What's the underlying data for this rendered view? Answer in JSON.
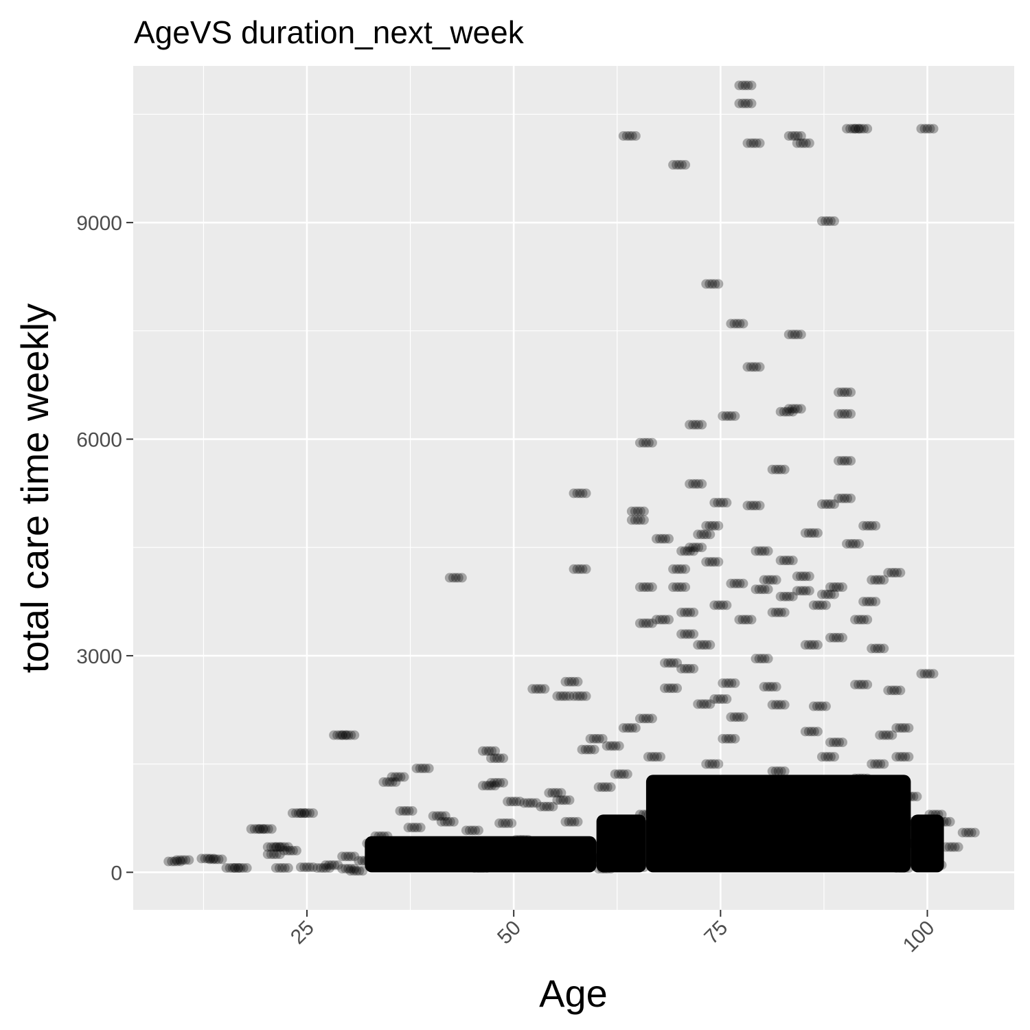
{
  "chart_data": {
    "type": "scatter",
    "title": "AgeVS duration_next_week",
    "xlabel": "Age",
    "ylabel": "total care time weekly",
    "xlim": [
      4,
      110.5
    ],
    "ylim": [
      -520,
      11170
    ],
    "xticks": [
      25,
      50,
      75,
      100
    ],
    "xtick_labels": [
      "25",
      "50",
      "75",
      "100"
    ],
    "yticks": [
      0,
      3000,
      6000,
      9000
    ],
    "ytick_labels": [
      "0",
      "3000",
      "6000",
      "9000"
    ],
    "grid": true,
    "x_tick_rotation_deg": -45,
    "point_color": "#000000",
    "point_alpha": 0.3,
    "points": [
      [
        9,
        150
      ],
      [
        10,
        170
      ],
      [
        13,
        190
      ],
      [
        14,
        180
      ],
      [
        16,
        60
      ],
      [
        17,
        60
      ],
      [
        19,
        600
      ],
      [
        20,
        600
      ],
      [
        21,
        350
      ],
      [
        22,
        350
      ],
      [
        21,
        250
      ],
      [
        22,
        60
      ],
      [
        23,
        300
      ],
      [
        24,
        820
      ],
      [
        25,
        820
      ],
      [
        25,
        70
      ],
      [
        27,
        60
      ],
      [
        28,
        100
      ],
      [
        29,
        1900
      ],
      [
        30,
        1900
      ],
      [
        30,
        220
      ],
      [
        31,
        20
      ],
      [
        32,
        160
      ],
      [
        33,
        400
      ],
      [
        34,
        500
      ],
      [
        35,
        1250
      ],
      [
        36,
        1320
      ],
      [
        37,
        850
      ],
      [
        38,
        620
      ],
      [
        39,
        1440
      ],
      [
        40,
        400
      ],
      [
        41,
        780
      ],
      [
        42,
        700
      ],
      [
        43,
        4080
      ],
      [
        44,
        400
      ],
      [
        45,
        580
      ],
      [
        46,
        300
      ],
      [
        47,
        1200
      ],
      [
        47,
        1680
      ],
      [
        48,
        1240
      ],
      [
        48,
        1580
      ],
      [
        49,
        680
      ],
      [
        50,
        980
      ],
      [
        51,
        450
      ],
      [
        52,
        960
      ],
      [
        53,
        2540
      ],
      [
        54,
        910
      ],
      [
        55,
        1100
      ],
      [
        56,
        1000
      ],
      [
        57,
        2640
      ],
      [
        56,
        2440
      ],
      [
        58,
        2440
      ],
      [
        58,
        5250
      ],
      [
        58,
        4200
      ],
      [
        59,
        1700
      ],
      [
        60,
        1850
      ],
      [
        61,
        1180
      ],
      [
        62,
        1750
      ],
      [
        63,
        1360
      ],
      [
        64,
        2000
      ],
      [
        64,
        10200
      ],
      [
        65,
        5000
      ],
      [
        65,
        4880
      ],
      [
        66,
        5950
      ],
      [
        66,
        3950
      ],
      [
        66,
        3450
      ],
      [
        66,
        2130
      ],
      [
        67,
        1600
      ],
      [
        68,
        4620
      ],
      [
        68,
        3500
      ],
      [
        69,
        2900
      ],
      [
        69,
        2550
      ],
      [
        70,
        9800
      ],
      [
        70,
        4200
      ],
      [
        70,
        3950
      ],
      [
        71,
        4450
      ],
      [
        71,
        3600
      ],
      [
        71,
        3300
      ],
      [
        71,
        2820
      ],
      [
        72,
        6200
      ],
      [
        72,
        5380
      ],
      [
        72,
        4500
      ],
      [
        73,
        4680
      ],
      [
        73,
        3150
      ],
      [
        73,
        2330
      ],
      [
        74,
        8150
      ],
      [
        74,
        4800
      ],
      [
        74,
        4300
      ],
      [
        75,
        5120
      ],
      [
        75,
        3700
      ],
      [
        75,
        2400
      ],
      [
        76,
        6320
      ],
      [
        76,
        2620
      ],
      [
        76,
        1850
      ],
      [
        77,
        7600
      ],
      [
        77,
        4000
      ],
      [
        77,
        2150
      ],
      [
        78,
        10900
      ],
      [
        78,
        10650
      ],
      [
        78,
        3500
      ],
      [
        79,
        10100
      ],
      [
        79,
        7000
      ],
      [
        79,
        5080
      ],
      [
        80,
        4450
      ],
      [
        80,
        3920
      ],
      [
        80,
        2960
      ],
      [
        81,
        4050
      ],
      [
        81,
        2570
      ],
      [
        82,
        5580
      ],
      [
        82,
        3600
      ],
      [
        82,
        2320
      ],
      [
        83,
        6380
      ],
      [
        83,
        4320
      ],
      [
        83,
        3820
      ],
      [
        84,
        10200
      ],
      [
        84,
        7450
      ],
      [
        84,
        6420
      ],
      [
        85,
        10100
      ],
      [
        85,
        4100
      ],
      [
        85,
        3900
      ],
      [
        86,
        4700
      ],
      [
        86,
        3150
      ],
      [
        86,
        1950
      ],
      [
        87,
        3700
      ],
      [
        87,
        2300
      ],
      [
        88,
        9020
      ],
      [
        88,
        5100
      ],
      [
        88,
        3850
      ],
      [
        89,
        3950
      ],
      [
        89,
        3250
      ],
      [
        89,
        1800
      ],
      [
        90,
        6650
      ],
      [
        90,
        6350
      ],
      [
        90,
        5700
      ],
      [
        90,
        5180
      ],
      [
        91,
        10300
      ],
      [
        91,
        4550
      ],
      [
        92,
        10300
      ],
      [
        92,
        3500
      ],
      [
        92,
        2600
      ],
      [
        93,
        4800
      ],
      [
        93,
        3750
      ],
      [
        94,
        4050
      ],
      [
        94,
        3100
      ],
      [
        95,
        1900
      ],
      [
        96,
        4150
      ],
      [
        96,
        2520
      ],
      [
        97,
        1600
      ],
      [
        97,
        2000
      ],
      [
        98,
        1050
      ],
      [
        99,
        700
      ],
      [
        100,
        10300
      ],
      [
        100,
        2750
      ],
      [
        101,
        800
      ],
      [
        102,
        700
      ],
      [
        103,
        350
      ],
      [
        105,
        550
      ],
      [
        35,
        300
      ],
      [
        38,
        150
      ],
      [
        42,
        200
      ],
      [
        45,
        120
      ],
      [
        48,
        250
      ],
      [
        50,
        300
      ],
      [
        52,
        150
      ],
      [
        55,
        400
      ],
      [
        57,
        700
      ],
      [
        60,
        200
      ],
      [
        62,
        600
      ],
      [
        64,
        300
      ],
      [
        66,
        800
      ],
      [
        68,
        1200
      ],
      [
        70,
        500
      ],
      [
        72,
        1000
      ],
      [
        74,
        1500
      ],
      [
        76,
        300
      ],
      [
        78,
        1200
      ],
      [
        80,
        600
      ],
      [
        82,
        1400
      ],
      [
        84,
        900
      ],
      [
        86,
        1100
      ],
      [
        88,
        1600
      ],
      [
        90,
        700
      ],
      [
        92,
        1300
      ],
      [
        94,
        1500
      ],
      [
        96,
        1000
      ],
      [
        98,
        400
      ],
      [
        100,
        250
      ],
      [
        30,
        50
      ],
      [
        40,
        80
      ],
      [
        46,
        60
      ],
      [
        53,
        80
      ],
      [
        58,
        90
      ],
      [
        61,
        50
      ],
      [
        65,
        70
      ],
      [
        69,
        150
      ],
      [
        73,
        200
      ],
      [
        77,
        100
      ],
      [
        81,
        120
      ],
      [
        85,
        180
      ],
      [
        89,
        140
      ],
      [
        93,
        90
      ],
      [
        97,
        60
      ],
      [
        101,
        100
      ]
    ],
    "dense_regions": [
      {
        "x_range": [
          32,
          60
        ],
        "y_range": [
          0,
          500
        ]
      },
      {
        "x_range": [
          60,
          66
        ],
        "y_range": [
          0,
          800
        ]
      },
      {
        "x_range": [
          66,
          98
        ],
        "y_range": [
          0,
          1350
        ]
      },
      {
        "x_range": [
          98,
          102
        ],
        "y_range": [
          0,
          800
        ]
      }
    ]
  }
}
